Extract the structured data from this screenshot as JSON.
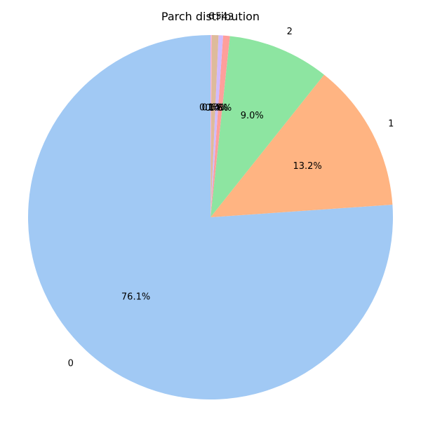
{
  "chart_data": {
    "type": "pie",
    "title": "Parch distribution",
    "categories": [
      "0",
      "1",
      "2",
      "3",
      "4",
      "5",
      "6"
    ],
    "values": [
      76.1,
      13.2,
      9.0,
      0.6,
      0.4,
      0.6,
      0.1
    ],
    "percent_labels": [
      "76.1%",
      "13.2%",
      "9.0%",
      "0.6%",
      "0.4%",
      "0.6%",
      "0.1%"
    ],
    "colors": [
      "#a1c9f4",
      "#ffb482",
      "#8de5a1",
      "#ff9f9b",
      "#d0bbff",
      "#debb9b",
      "#fab0e4"
    ],
    "start_angle_deg": 90,
    "direction": "counterclockwise",
    "legend": "none"
  }
}
